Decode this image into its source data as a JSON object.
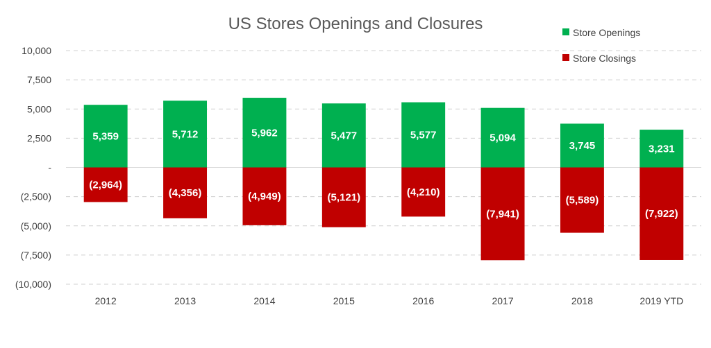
{
  "chart_data": {
    "type": "bar",
    "title": "US Stores Openings and Closures",
    "xlabel": "",
    "ylabel": "",
    "categories": [
      "2012",
      "2013",
      "2014",
      "2015",
      "2016",
      "2017",
      "2018",
      "2019 YTD"
    ],
    "series": [
      {
        "name": "Store Openings",
        "color": "#00b050",
        "values": [
          5359,
          5712,
          5962,
          5477,
          5577,
          5094,
          3745,
          3231
        ],
        "labels": [
          "5,359",
          "5,712",
          "5,962",
          "5,477",
          "5,577",
          "5,094",
          "3,745",
          "3,231"
        ]
      },
      {
        "name": "Store Closings",
        "color": "#c00000",
        "values": [
          -2964,
          -4356,
          -4949,
          -5121,
          -4210,
          -7941,
          -5589,
          -7922
        ],
        "labels": [
          "(2,964)",
          "(4,356)",
          "(4,949)",
          "(5,121)",
          "(4,210)",
          "(7,941)",
          "(5,589)",
          "(7,922)"
        ]
      }
    ],
    "ylim": [
      -10000,
      10000
    ],
    "yticks": [
      10000,
      7500,
      5000,
      2500,
      0,
      -2500,
      -5000,
      -7500,
      -10000
    ],
    "ytick_labels": [
      "10,000",
      "7,500",
      "5,000",
      "2,500",
      "-",
      "(2,500)",
      "(5,000)",
      "(7,500)",
      "(10,000)"
    ],
    "grid": true,
    "stacked": true,
    "legend_position": "top-right"
  }
}
